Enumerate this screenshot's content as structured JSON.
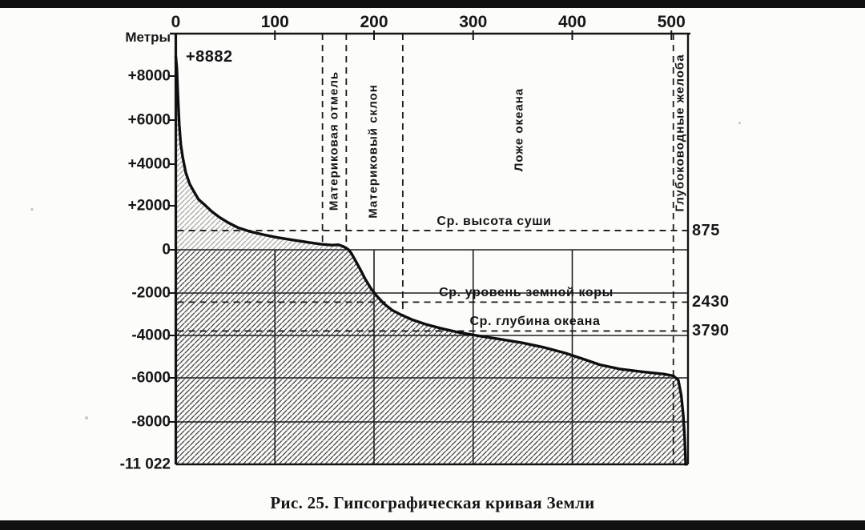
{
  "chart_data": {
    "type": "area",
    "title": "Рис. 25. Гипсографическая кривая Земли",
    "xlabel": "",
    "ylabel": "Метры",
    "x_tick_labels": [
      "0",
      "100",
      "200",
      "300",
      "400",
      "500"
    ],
    "x_tick_values": [
      0,
      100,
      200,
      300,
      400,
      500
    ],
    "y_tick_labels": [
      "+8000",
      "+6000",
      "+4000",
      "+2000",
      "0",
      "-2000",
      "-4000",
      "-6000",
      "-8000",
      "-11 022"
    ],
    "y_tick_values": [
      8000,
      6000,
      4000,
      2000,
      0,
      -2000,
      -4000,
      -6000,
      -8000,
      -11022
    ],
    "xlim": [
      0,
      515
    ],
    "ylim": [
      -11022,
      9500
    ],
    "grid": "solid gridlines below sea level only",
    "legend": "none",
    "series": [
      {
        "name": "hypsographic-curve",
        "points": [
          [
            0,
            8882
          ],
          [
            1,
            8400
          ],
          [
            2,
            7200
          ],
          [
            3.5,
            5800
          ],
          [
            5,
            4900
          ],
          [
            7,
            4300
          ],
          [
            10,
            3600
          ],
          [
            14,
            3050
          ],
          [
            18,
            2700
          ],
          [
            23,
            2300
          ],
          [
            29,
            2050
          ],
          [
            36,
            1750
          ],
          [
            44,
            1480
          ],
          [
            53,
            1230
          ],
          [
            63,
            1000
          ],
          [
            75,
            830
          ],
          [
            88,
            690
          ],
          [
            102,
            560
          ],
          [
            117,
            450
          ],
          [
            132,
            350
          ],
          [
            146,
            260
          ],
          [
            158,
            210
          ],
          [
            164,
            230
          ],
          [
            169,
            150
          ],
          [
            172,
            70
          ],
          [
            174.5,
            0
          ],
          [
            177,
            -150
          ],
          [
            181,
            -480
          ],
          [
            186,
            -900
          ],
          [
            191,
            -1350
          ],
          [
            197,
            -1800
          ],
          [
            203,
            -2150
          ],
          [
            210,
            -2500
          ],
          [
            218,
            -2800
          ],
          [
            227,
            -3020
          ],
          [
            238,
            -3250
          ],
          [
            252,
            -3470
          ],
          [
            268,
            -3670
          ],
          [
            287,
            -3870
          ],
          [
            307,
            -4030
          ],
          [
            328,
            -4180
          ],
          [
            350,
            -4350
          ],
          [
            372,
            -4570
          ],
          [
            393,
            -4830
          ],
          [
            412,
            -5130
          ],
          [
            428,
            -5380
          ],
          [
            448,
            -5580
          ],
          [
            472,
            -5720
          ],
          [
            492,
            -5820
          ],
          [
            502,
            -5900
          ],
          [
            507,
            -6100
          ],
          [
            510,
            -6800
          ],
          [
            512,
            -7700
          ],
          [
            513.3,
            -9000
          ],
          [
            514,
            -10200
          ],
          [
            514.4,
            -11022
          ]
        ]
      }
    ],
    "annotations": [
      {
        "text": "+8882",
        "area": 0,
        "elevation": 8882
      }
    ],
    "reference_lines_horizontal": [
      {
        "label": "Ср. высота суши",
        "value": 875,
        "value_label": "875"
      },
      {
        "label": "Ср. уровень земной коры",
        "value": -2430,
        "value_label": "2430"
      },
      {
        "label": "Ср. глубина океана",
        "value": -3790,
        "value_label": "3790"
      }
    ],
    "zone_dividers_vertical": [
      {
        "area": 148,
        "end_elevation": 170
      },
      {
        "area": 172,
        "end_elevation": 60
      },
      {
        "area": 229,
        "end_elevation": -3000
      },
      {
        "area": 502,
        "end_elevation": -11022
      }
    ],
    "zones": [
      {
        "label": "Материковая отмель"
      },
      {
        "label": "Материковый склон"
      },
      {
        "label": "Ложе океана"
      },
      {
        "label": "Глубоководные желоба"
      }
    ]
  }
}
